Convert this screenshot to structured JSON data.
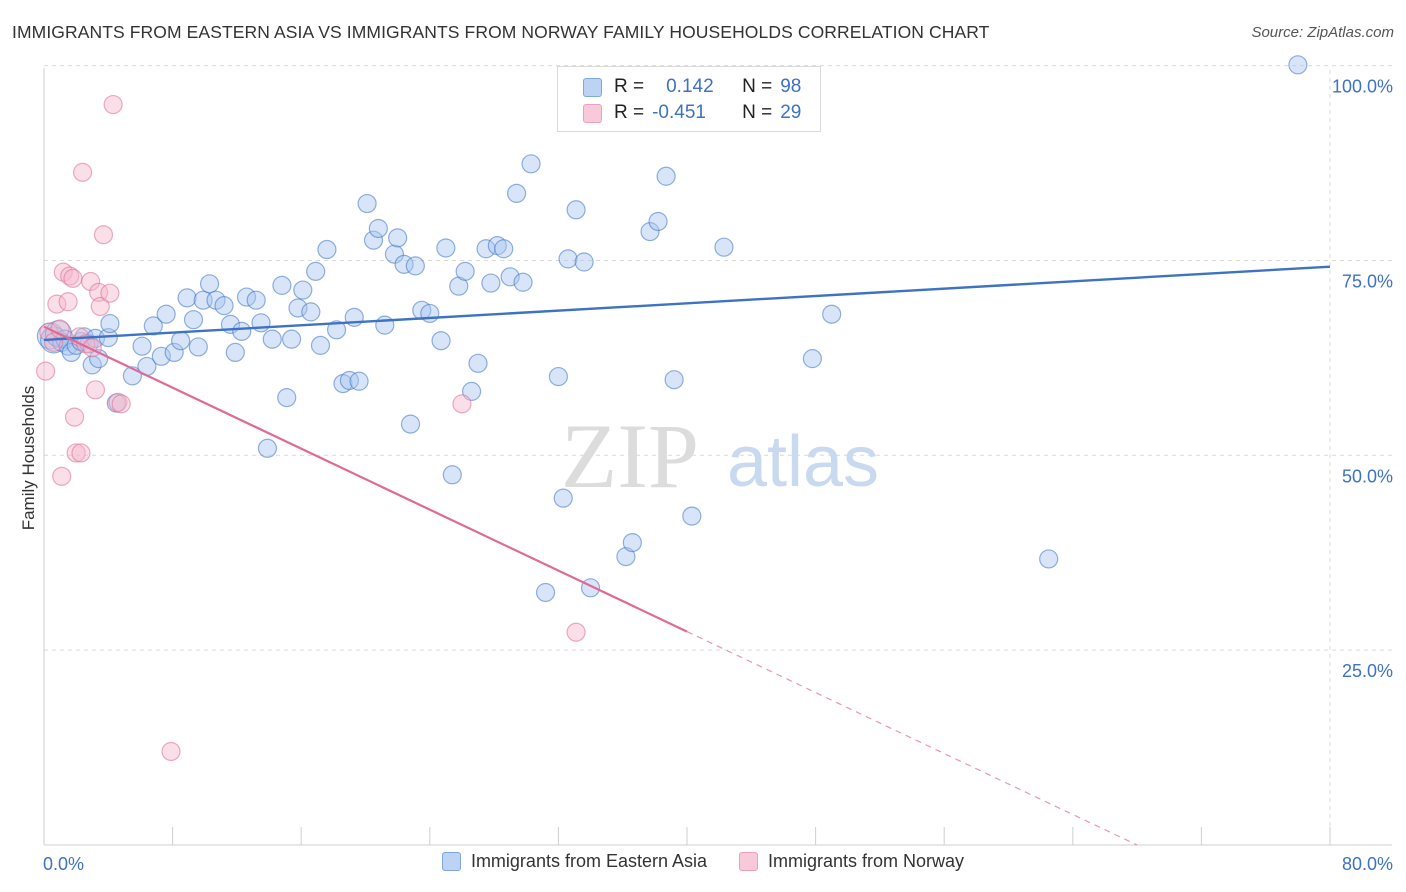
{
  "title": "IMMIGRANTS FROM EASTERN ASIA VS IMMIGRANTS FROM NORWAY FAMILY HOUSEHOLDS CORRELATION CHART",
  "source": "Source: ZipAtlas.com",
  "watermark": {
    "zip": "ZIP",
    "atlas": "atlas"
  },
  "colors": {
    "blue": "#3d72c4",
    "blue_fill": "#a9c6ef",
    "pink": "#e06a96",
    "pink_fill": "#f5b8cc",
    "grid": "#d9d9d9"
  },
  "legend_top": [
    {
      "r_label": "R =",
      "r_value": "0.142",
      "n_label": "N =",
      "n_value": "98"
    },
    {
      "r_label": "R =",
      "r_value": "-0.451",
      "n_label": "N =",
      "n_value": "29"
    }
  ],
  "chart_data": {
    "type": "scatter",
    "title": "IMMIGRANTS FROM EASTERN ASIA VS IMMIGRANTS FROM NORWAY FAMILY HOUSEHOLDS CORRELATION CHART",
    "ylabel": "Family Households",
    "xlim": [
      0,
      80
    ],
    "ylim": [
      0,
      102
    ],
    "x_tick_labels": [
      {
        "value": 0,
        "label": "0.0%"
      },
      {
        "value": 80,
        "label": "80.0%"
      }
    ],
    "y_tick_labels": [
      {
        "value": 25,
        "label": "25.0%"
      },
      {
        "value": 50,
        "label": "50.0%"
      },
      {
        "value": 75,
        "label": "75.0%"
      },
      {
        "value": 100,
        "label": "100.0%"
      }
    ],
    "x_minor_ticks": [
      8,
      16,
      24,
      32,
      40,
      48,
      56,
      64,
      72,
      80
    ],
    "grid": true,
    "legend": "bottom",
    "series": [
      {
        "name": "Immigrants from Eastern Asia",
        "color": "#3d72c4",
        "fill": "#a9c6ef",
        "trend": {
          "x": [
            0,
            80
          ],
          "y": [
            64.8,
            74.2
          ],
          "dashed_from": null
        },
        "points": [
          [
            0.4,
            65.3
          ],
          [
            0.6,
            64.8
          ],
          [
            0.9,
            65.6
          ],
          [
            1.1,
            64.5
          ],
          [
            1.3,
            64.9
          ],
          [
            1.5,
            64.0
          ],
          [
            1.7,
            63.2
          ],
          [
            2.0,
            64.1
          ],
          [
            2.3,
            64.6
          ],
          [
            2.5,
            65.2
          ],
          [
            2.8,
            64.3
          ],
          [
            3.0,
            61.6
          ],
          [
            3.2,
            65.0
          ],
          [
            3.4,
            62.4
          ],
          [
            4.0,
            65.1
          ],
          [
            4.1,
            66.9
          ],
          [
            4.5,
            56.7
          ],
          [
            5.5,
            60.2
          ],
          [
            6.1,
            64.0
          ],
          [
            6.4,
            61.4
          ],
          [
            6.8,
            66.6
          ],
          [
            7.3,
            62.7
          ],
          [
            7.6,
            68.1
          ],
          [
            8.1,
            63.2
          ],
          [
            8.5,
            64.7
          ],
          [
            8.9,
            70.2
          ],
          [
            9.3,
            67.4
          ],
          [
            9.6,
            63.9
          ],
          [
            9.9,
            69.9
          ],
          [
            10.3,
            72.0
          ],
          [
            10.7,
            69.9
          ],
          [
            11.2,
            69.2
          ],
          [
            11.6,
            66.8
          ],
          [
            11.9,
            63.2
          ],
          [
            12.3,
            65.9
          ],
          [
            12.6,
            70.3
          ],
          [
            13.2,
            69.9
          ],
          [
            13.5,
            67.0
          ],
          [
            13.9,
            50.9
          ],
          [
            14.2,
            64.9
          ],
          [
            14.8,
            71.8
          ],
          [
            15.1,
            57.4
          ],
          [
            15.4,
            64.9
          ],
          [
            15.8,
            68.9
          ],
          [
            16.1,
            71.2
          ],
          [
            16.6,
            68.4
          ],
          [
            16.9,
            73.6
          ],
          [
            17.2,
            64.1
          ],
          [
            17.6,
            76.4
          ],
          [
            18.2,
            66.1
          ],
          [
            18.6,
            59.2
          ],
          [
            19.0,
            59.6
          ],
          [
            19.3,
            67.7
          ],
          [
            19.6,
            59.5
          ],
          [
            20.1,
            82.3
          ],
          [
            20.5,
            77.6
          ],
          [
            20.8,
            79.1
          ],
          [
            21.2,
            66.7
          ],
          [
            21.8,
            75.8
          ],
          [
            22.0,
            77.9
          ],
          [
            22.4,
            74.5
          ],
          [
            22.8,
            54.0
          ],
          [
            23.1,
            74.3
          ],
          [
            23.5,
            68.6
          ],
          [
            24.0,
            68.2
          ],
          [
            24.7,
            64.7
          ],
          [
            25.0,
            76.6
          ],
          [
            25.4,
            47.5
          ],
          [
            25.8,
            71.7
          ],
          [
            26.2,
            73.6
          ],
          [
            26.6,
            58.2
          ],
          [
            27.0,
            61.8
          ],
          [
            27.5,
            76.5
          ],
          [
            27.8,
            72.1
          ],
          [
            28.2,
            76.9
          ],
          [
            28.6,
            76.5
          ],
          [
            29.0,
            72.9
          ],
          [
            29.4,
            83.6
          ],
          [
            29.8,
            72.2
          ],
          [
            30.3,
            87.4
          ],
          [
            31.2,
            32.4
          ],
          [
            32.0,
            60.1
          ],
          [
            32.3,
            44.5
          ],
          [
            32.6,
            75.2
          ],
          [
            33.1,
            81.5
          ],
          [
            33.6,
            74.8
          ],
          [
            34.0,
            33.0
          ],
          [
            36.2,
            37.0
          ],
          [
            36.6,
            38.8
          ],
          [
            37.7,
            78.7
          ],
          [
            38.2,
            80.0
          ],
          [
            38.7,
            85.8
          ],
          [
            39.2,
            59.7
          ],
          [
            40.3,
            42.2
          ],
          [
            42.3,
            76.7
          ],
          [
            47.8,
            62.4
          ],
          [
            49.0,
            68.1
          ],
          [
            62.5,
            36.7
          ],
          [
            78.0,
            100.1
          ]
        ]
      },
      {
        "name": "Immigrants from Norway",
        "color": "#e06a96",
        "fill": "#f5b8cc",
        "trend": {
          "x": [
            0,
            68
          ],
          "y": [
            66.5,
            0
          ],
          "dashed_from": 40
        },
        "points": [
          [
            0.1,
            60.8
          ],
          [
            0.3,
            65.8
          ],
          [
            0.6,
            64.5
          ],
          [
            0.8,
            69.4
          ],
          [
            1.0,
            66.2
          ],
          [
            1.1,
            47.3
          ],
          [
            1.2,
            73.5
          ],
          [
            1.5,
            69.7
          ],
          [
            1.6,
            73.0
          ],
          [
            1.8,
            72.7
          ],
          [
            1.9,
            54.9
          ],
          [
            2.0,
            50.3
          ],
          [
            2.2,
            65.2
          ],
          [
            2.3,
            50.3
          ],
          [
            2.4,
            86.3
          ],
          [
            2.6,
            64.3
          ],
          [
            2.9,
            72.3
          ],
          [
            3.0,
            63.8
          ],
          [
            3.2,
            58.4
          ],
          [
            3.4,
            70.9
          ],
          [
            3.5,
            69.1
          ],
          [
            3.7,
            78.3
          ],
          [
            4.1,
            70.8
          ],
          [
            4.3,
            95.0
          ],
          [
            4.6,
            56.8
          ],
          [
            4.8,
            56.6
          ],
          [
            7.9,
            12.0
          ],
          [
            26.0,
            56.6
          ],
          [
            33.1,
            27.3
          ]
        ]
      }
    ]
  }
}
